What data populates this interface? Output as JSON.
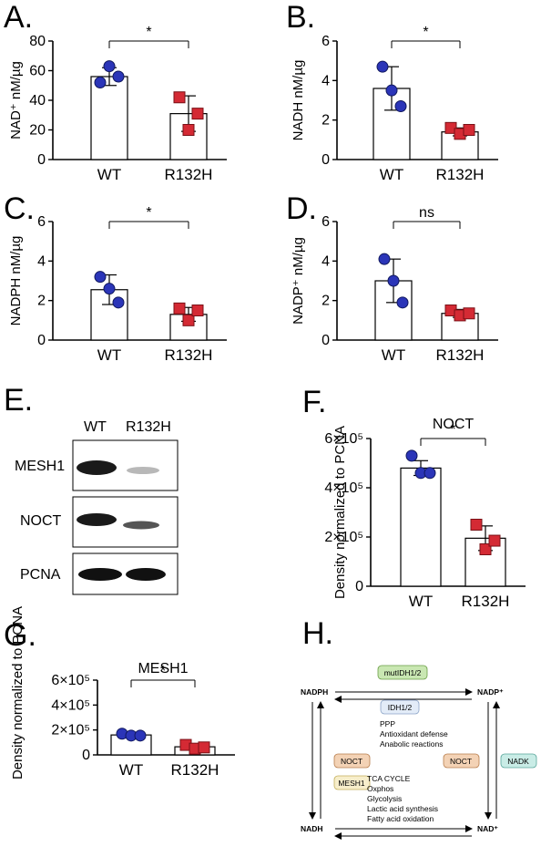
{
  "panel_labels": [
    "A.",
    "B.",
    "C.",
    "D.",
    "E.",
    "F.",
    "G.",
    "H."
  ],
  "colors": {
    "wt": "#2b35b8",
    "r132h": "#d42a34",
    "bar": "#ffffff",
    "axis": "#000000"
  },
  "chart_data": [
    {
      "id": "A",
      "type": "bar",
      "title": "",
      "ylabel": "NAD⁺ nM/µg",
      "categories": [
        "WT",
        "R132H"
      ],
      "ylim": [
        0,
        80
      ],
      "yticks": [
        "0",
        "20",
        "40",
        "60",
        "80"
      ],
      "ytick_values": [
        0,
        20,
        40,
        60,
        80
      ],
      "values": [
        56,
        31
      ],
      "errors": [
        6,
        12
      ],
      "points": [
        [
          52,
          63,
          56
        ],
        [
          42,
          20,
          31
        ]
      ],
      "markers": [
        "circle",
        "square"
      ],
      "significance": "*"
    },
    {
      "id": "B",
      "type": "bar",
      "title": "",
      "ylabel": "NADH nM/µg",
      "categories": [
        "WT",
        "R132H"
      ],
      "ylim": [
        0,
        6
      ],
      "yticks": [
        "0",
        "2",
        "4",
        "6"
      ],
      "ytick_values": [
        0,
        2,
        4,
        6
      ],
      "values": [
        3.6,
        1.4
      ],
      "errors": [
        1.1,
        0.2
      ],
      "points": [
        [
          4.7,
          3.5,
          2.7
        ],
        [
          1.6,
          1.3,
          1.5
        ]
      ],
      "markers": [
        "circle",
        "square"
      ],
      "significance": "*"
    },
    {
      "id": "C",
      "type": "bar",
      "title": "",
      "ylabel": "NADPH nM/µg",
      "categories": [
        "WT",
        "R132H"
      ],
      "ylim": [
        0,
        6
      ],
      "yticks": [
        "0",
        "2",
        "4",
        "6"
      ],
      "ytick_values": [
        0,
        2,
        4,
        6
      ],
      "values": [
        2.55,
        1.3
      ],
      "errors": [
        0.75,
        0.35
      ],
      "points": [
        [
          3.2,
          2.6,
          1.9
        ],
        [
          1.6,
          1.0,
          1.5
        ]
      ],
      "markers": [
        "circle",
        "square"
      ],
      "significance": "*"
    },
    {
      "id": "D",
      "type": "bar",
      "title": "",
      "ylabel": "NADP⁺ nM/µg",
      "categories": [
        "WT",
        "R132H"
      ],
      "ylim": [
        0,
        6
      ],
      "yticks": [
        "0",
        "2",
        "4",
        "6"
      ],
      "ytick_values": [
        0,
        2,
        4,
        6
      ],
      "values": [
        3.0,
        1.35
      ],
      "errors": [
        1.1,
        0.2
      ],
      "points": [
        [
          4.1,
          3.0,
          1.9
        ],
        [
          1.5,
          1.25,
          1.35
        ]
      ],
      "markers": [
        "circle",
        "square"
      ],
      "significance": "ns"
    },
    {
      "id": "F",
      "type": "bar",
      "title": "NOCT",
      "ylabel": "Density normalized to PCNA",
      "categories": [
        "WT",
        "R132H"
      ],
      "ylim": [
        0,
        600000
      ],
      "yticks": [
        "0",
        "2×10⁵",
        "4×10⁵",
        "6×10⁵"
      ],
      "ytick_values": [
        0,
        200000,
        400000,
        600000
      ],
      "values": [
        480000,
        195000
      ],
      "errors": [
        30000,
        50000
      ],
      "points": [
        [
          530000,
          460000,
          460000
        ],
        [
          250000,
          150000,
          185000
        ]
      ],
      "markers": [
        "circle",
        "square"
      ],
      "significance": "*"
    },
    {
      "id": "G",
      "type": "bar",
      "title": "MESH1",
      "ylabel": "Density normalized to PCNA",
      "categories": [
        "WT",
        "R132H"
      ],
      "ylim": [
        0,
        600000
      ],
      "yticks": [
        "0",
        "2×10⁵",
        "4×10⁵",
        "6×10⁵"
      ],
      "ytick_values": [
        0,
        200000,
        400000,
        600000
      ],
      "values": [
        160000,
        65000
      ],
      "errors": [
        15000,
        20000
      ],
      "points": [
        [
          170000,
          155000,
          155000
        ],
        [
          80000,
          50000,
          60000
        ]
      ],
      "markers": [
        "circle",
        "square"
      ],
      "significance": "*"
    }
  ],
  "blot": {
    "lanes": [
      "WT",
      "R132H"
    ],
    "rows": [
      "MESH1",
      "NOCT",
      "PCNA"
    ]
  },
  "schematic": {
    "nadph": "NADPH",
    "nadp": "NADP⁺",
    "nadh": "NADH",
    "nad": "NAD⁺",
    "mutidh": "mutIDH1/2",
    "idh": "IDH1/2",
    "ppp_lines": [
      "PPP",
      "Antioxidant defense",
      "Anabolic reactions"
    ],
    "noct_left": "NOCT",
    "noct_right": "NOCT",
    "mesh1": "MESH1",
    "nadk": "NADK",
    "tca_lines": [
      "TCA CYCLE",
      "Oxphos",
      "Glycolysis",
      "Lactic acid synthesis",
      "Fatty acid oxidation"
    ]
  }
}
